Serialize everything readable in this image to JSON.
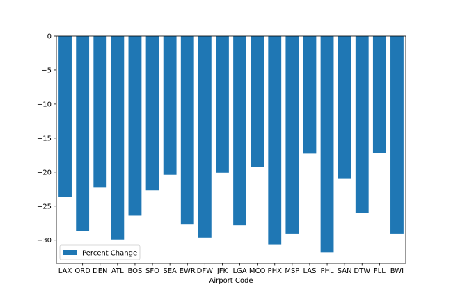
{
  "chart_data": {
    "type": "bar",
    "title": "",
    "xlabel": "Airport Code",
    "ylabel": "",
    "categories": [
      "LAX",
      "ORD",
      "DEN",
      "ATL",
      "BOS",
      "SFO",
      "SEA",
      "EWR",
      "DFW",
      "JFK",
      "LGA",
      "MCO",
      "PHX",
      "MSP",
      "LAS",
      "PHL",
      "SAN",
      "DTW",
      "FLL",
      "BWI"
    ],
    "series": [
      {
        "name": "Percent Change",
        "color": "#1f77b4",
        "values": [
          -23.6,
          -28.6,
          -22.2,
          -29.9,
          -26.4,
          -22.7,
          -20.4,
          -27.7,
          -29.6,
          -20.1,
          -27.8,
          -19.3,
          -30.7,
          -29.1,
          -17.3,
          -31.8,
          -21.0,
          -26.0,
          -17.2,
          -29.1
        ]
      }
    ],
    "ylim": [
      -33.4,
      0
    ],
    "yticks": [
      0,
      -5,
      -10,
      -15,
      -20,
      -25,
      -30
    ],
    "grid": false,
    "legend": {
      "position": "lower-left"
    }
  }
}
